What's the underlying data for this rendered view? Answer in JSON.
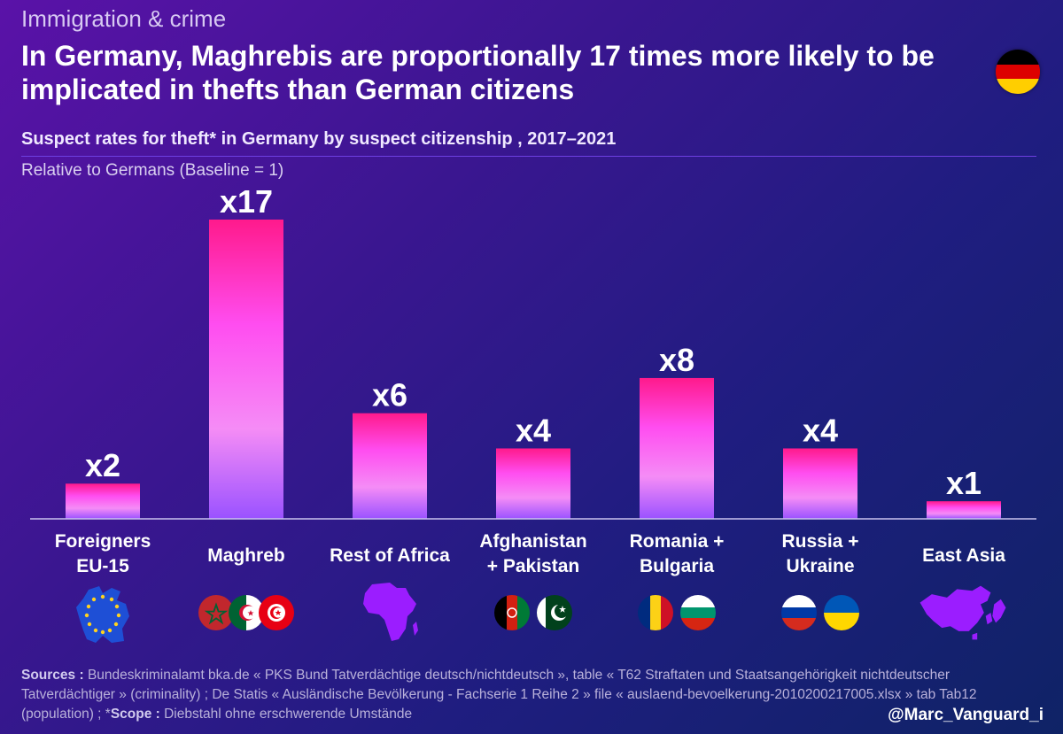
{
  "header": {
    "kicker": "Immigration & crime",
    "title": "In Germany, Maghrebis are proportionally 17 times more likely to be implicated in thefts than German citizens",
    "flag": {
      "name": "germany-flag",
      "colors": [
        "#000000",
        "#dd0000",
        "#ffce00"
      ]
    }
  },
  "chart_data": {
    "type": "bar",
    "title": "Suspect rates for theft* in Germany by suspect citizenship , 2017–2021",
    "ylabel": "Relative to Germans (Baseline = 1)",
    "xlabel": "",
    "ylim": [
      0,
      17
    ],
    "grid": false,
    "categories": [
      "Foreigners\nEU-15",
      "Maghreb",
      "Rest of Africa",
      "Afghanistan\n+ Pakistan",
      "Romania +\nBulgaria",
      "Russia +\nUkraine",
      "East Asia"
    ],
    "values": [
      2,
      17,
      6,
      4,
      8,
      4,
      1
    ],
    "data_labels": [
      "x2",
      "x17",
      "x6",
      "x4",
      "x8",
      "x4",
      "x1"
    ],
    "icons": [
      [
        "eu-map-icon"
      ],
      [
        "morocco-flag-icon",
        "algeria-flag-icon",
        "tunisia-flag-icon"
      ],
      [
        "africa-map-icon"
      ],
      [
        "afghanistan-flag-icon",
        "pakistan-flag-icon"
      ],
      [
        "romania-flag-icon",
        "bulgaria-flag-icon"
      ],
      [
        "russia-flag-icon",
        "ukraine-flag-icon"
      ],
      [
        "east-asia-map-icon"
      ]
    ],
    "colors": {
      "bar_top": "#ff1a8c",
      "bar_mid": "#ff4df0",
      "bar_bottom": "#9a52ff",
      "axis": "#c9c2ee"
    }
  },
  "footer": {
    "sources_label": "Sources :",
    "sources_text": " Bundeskriminalamt bka.de « PKS Bund Tatverdächtige deutsch/nichtdeutsch », table « T62 Straftaten und Staatsangehörigkeit nichtdeutscher Tatverdächtiger » (criminality) ; De Statis « Ausländische Bevölkerung - Fachserie 1 Reihe 2 » file « auslaend-bevoelkerung-2010200217005.xlsx » tab Tab12 (population) ; *",
    "scope_label": "Scope :",
    "scope_text": " Diebstahl ohne erschwerende Umstände",
    "handle": "@Marc_Vanguard_i"
  }
}
